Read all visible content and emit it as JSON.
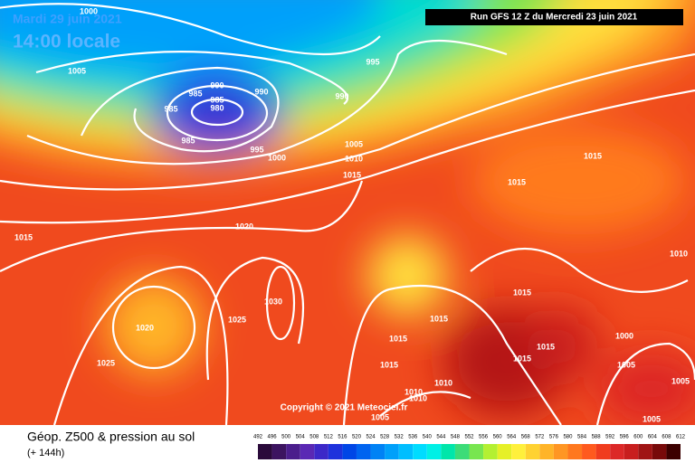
{
  "header": {
    "date": "Mardi 29 juin 2021",
    "time": "14:00 locale",
    "run": "Run GFS 12 Z du Mercredi 23 juin 2021",
    "copyright": "Copyright © 2021 Meteociel.fr"
  },
  "isobar_labels": [
    "1000",
    "1005",
    "995",
    "990",
    "990",
    "990",
    "985",
    "985",
    "980",
    "985",
    "985",
    "995",
    "1000",
    "1005",
    "1010",
    "1015",
    "1020",
    "1015",
    "1015",
    "1015",
    "1010",
    "1030",
    "1025",
    "1020",
    "1025",
    "1015",
    "1015",
    "1015",
    "1015",
    "1015",
    "1015",
    "1005",
    "1000",
    "1005",
    "1010",
    "1010",
    "1010",
    "1005",
    "1005"
  ],
  "footer": {
    "title": "Géop. Z500 & pression au sol",
    "lead": "(+ 144h)"
  },
  "legend": {
    "ticks": [
      492,
      496,
      500,
      504,
      508,
      512,
      516,
      520,
      524,
      528,
      532,
      536,
      540,
      544,
      548,
      552,
      556,
      560,
      564,
      568,
      572,
      576,
      580,
      584,
      588,
      592,
      596,
      600,
      604,
      608,
      612
    ],
    "colors": [
      "#2a0a3a",
      "#3c1460",
      "#4b1e8c",
      "#5a28b4",
      "#3c28c8",
      "#1e32dc",
      "#0046e6",
      "#0064f0",
      "#0082f5",
      "#00a0fa",
      "#00beff",
      "#00dcff",
      "#00f0e6",
      "#00e6aa",
      "#3cdc78",
      "#78e650",
      "#b4f032",
      "#e6f028",
      "#fff03c",
      "#ffd232",
      "#ffb428",
      "#ff9623",
      "#ff781e",
      "#ff5a1e",
      "#f03c1e",
      "#dc2828",
      "#c81e1e",
      "#a01414",
      "#780a0a",
      "#3c0000"
    ]
  }
}
